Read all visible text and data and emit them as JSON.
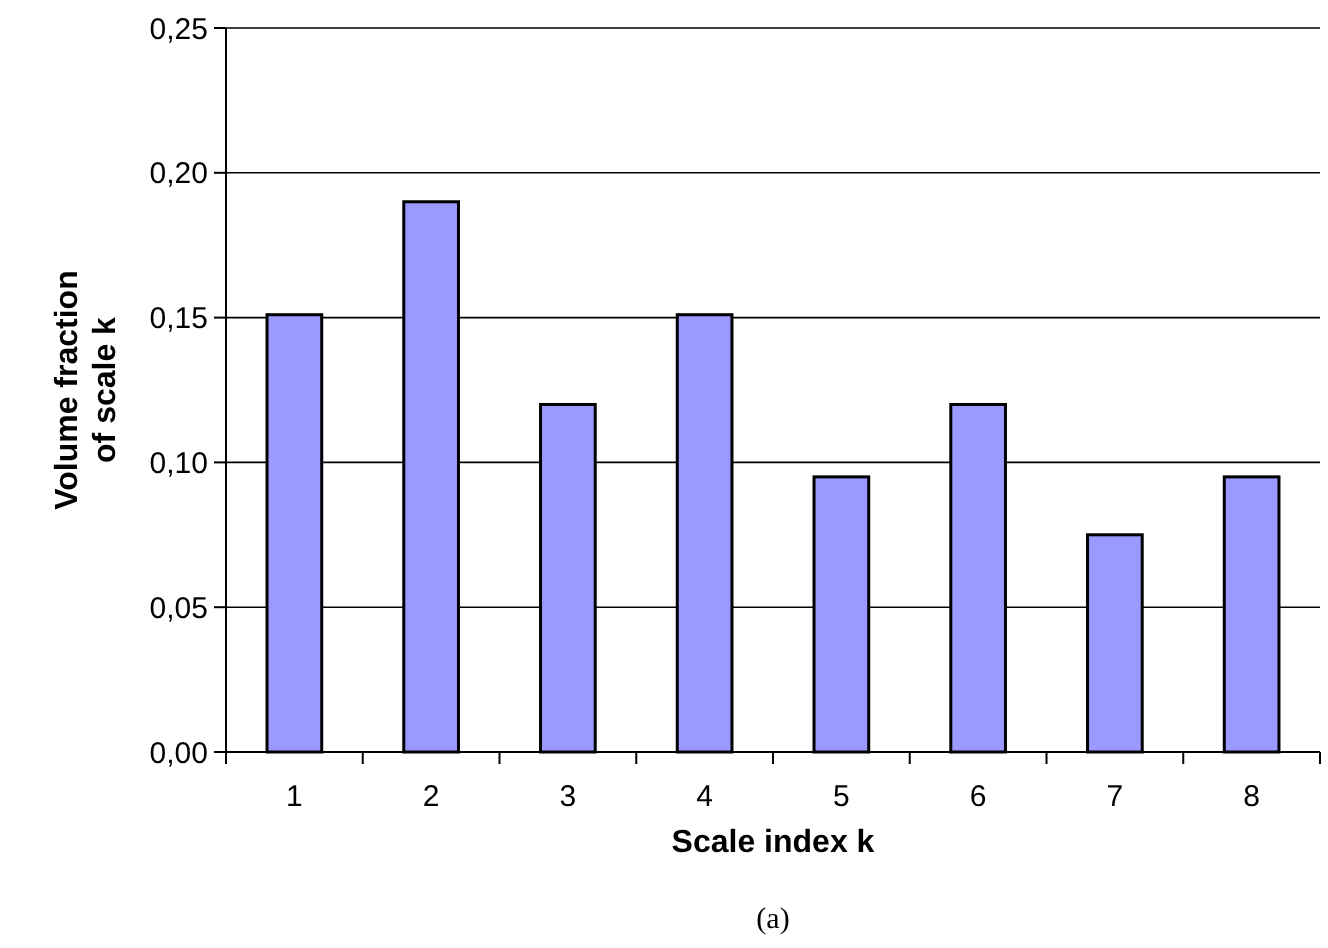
{
  "chart_data": {
    "type": "bar",
    "xlabel": "Scale index k",
    "ylabel": "Volume fraction of scale k",
    "categories": [
      "1",
      "2",
      "3",
      "4",
      "5",
      "6",
      "7",
      "8"
    ],
    "values": [
      0.151,
      0.19,
      0.12,
      0.151,
      0.095,
      0.12,
      0.075,
      0.095
    ],
    "color": "#9999ff",
    "ylim": [
      0,
      0.25
    ],
    "yticks": [
      {
        "value": 0,
        "label": "0,00"
      },
      {
        "value": 0.05,
        "label": "0,05"
      },
      {
        "value": 0.1,
        "label": "0,10"
      },
      {
        "value": 0.15,
        "label": "0,15"
      },
      {
        "value": 0.2,
        "label": "0,20"
      },
      {
        "value": 0.25,
        "label": "0,25"
      }
    ],
    "grid": "y",
    "annotations": [
      "(a)"
    ]
  }
}
